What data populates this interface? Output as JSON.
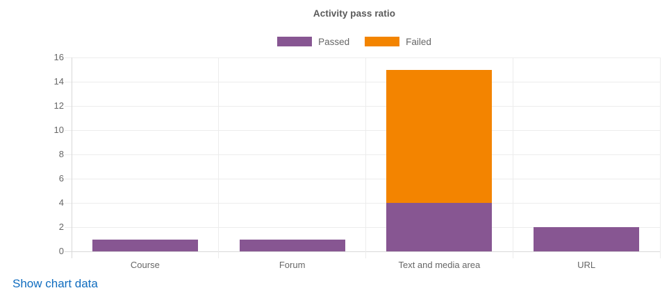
{
  "chart_data": {
    "type": "bar",
    "stacked": true,
    "title": "Activity pass ratio",
    "categories": [
      "Course",
      "Forum",
      "Text and media area",
      "URL"
    ],
    "series": [
      {
        "name": "Passed",
        "color": "#875692",
        "values": [
          1,
          1,
          4,
          2
        ]
      },
      {
        "name": "Failed",
        "color": "#f38400",
        "values": [
          0,
          0,
          11,
          0
        ]
      }
    ],
    "ylim": [
      0,
      16
    ],
    "ytick_step": 2,
    "yticks": [
      0,
      2,
      4,
      6,
      8,
      10,
      12,
      14,
      16
    ],
    "xlabel": "",
    "ylabel": "",
    "grid": true,
    "legend_position": "top"
  },
  "footer": {
    "show_chart_data_label": "Show chart data"
  },
  "colors": {
    "link": "#0f6cbf",
    "title_text": "#595959",
    "tick_text": "#666666",
    "grid": "#ececec",
    "axis": "#d8d8d8",
    "background": "#ffffff"
  }
}
